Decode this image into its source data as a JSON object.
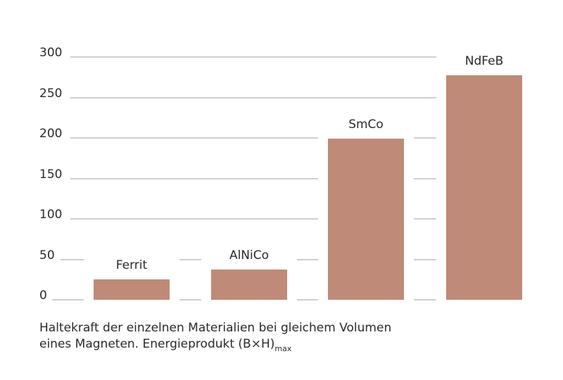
{
  "chart_data": {
    "type": "bar",
    "title": "",
    "categories": [
      "Ferrit",
      "AlNiCo",
      "SmCo",
      "NdFeB"
    ],
    "values": [
      25,
      37,
      199,
      277
    ],
    "xlabel": "",
    "ylabel": "",
    "ylim": [
      0,
      300
    ],
    "yticks": [
      0,
      50,
      100,
      150,
      200,
      250,
      300
    ],
    "grid": true,
    "legend": null,
    "bar_color": "#bf8a78",
    "caption_line1": "Haltekraft der einzelnen Materialien bei gleichem Volumen",
    "caption_line2": "eines Magneten. Energieprodukt (B×H)",
    "caption_subscript": "max"
  },
  "axis": {
    "ticks": [
      "0",
      "50",
      "100",
      "150",
      "200",
      "250",
      "300"
    ]
  },
  "bars": [
    {
      "label": "Ferrit"
    },
    {
      "label": "AlNiCo"
    },
    {
      "label": "SmCo"
    },
    {
      "label": "NdFeB"
    }
  ],
  "caption": {
    "line1": "Haltekraft der einzelnen Materialien bei gleichem Volumen",
    "line2": "eines Magneten. Energieprodukt (B×H)",
    "subscript": "max"
  }
}
